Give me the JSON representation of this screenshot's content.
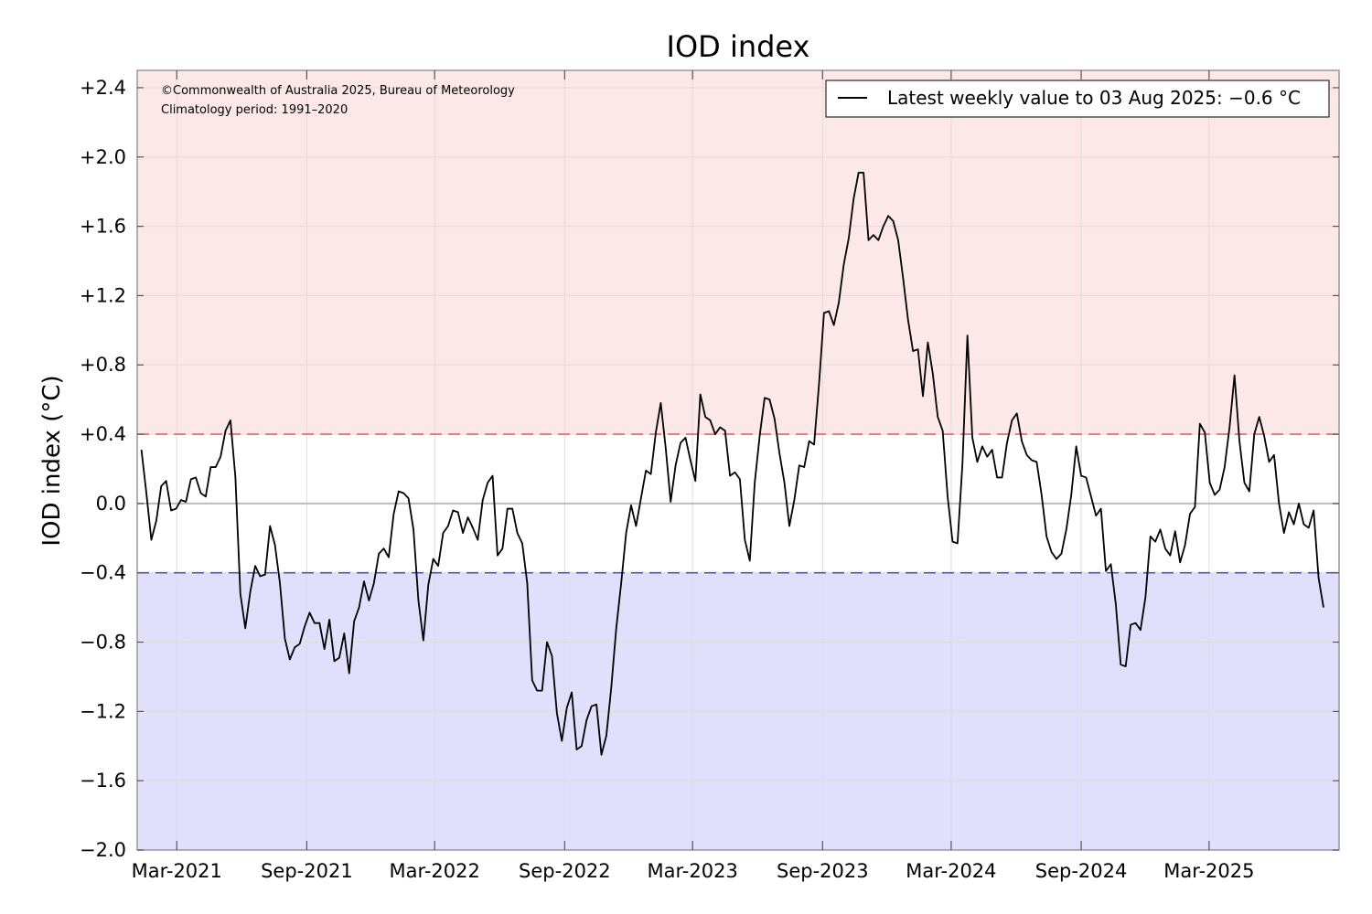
{
  "chart_data": {
    "type": "line",
    "title": "IOD index",
    "xlabel": "",
    "ylabel": "IOD index (°C)",
    "ylim": [
      -2.0,
      2.5
    ],
    "xlim": [
      "2021-01-04",
      "2025-09-01"
    ],
    "y_ticks": [
      -2.0,
      -1.6,
      -1.2,
      -0.8,
      -0.4,
      0.0,
      0.4,
      0.8,
      1.2,
      1.6,
      2.0,
      2.4
    ],
    "y_tick_labels": [
      "−2.0",
      "−1.6",
      "−1.2",
      "−0.8",
      "−0.4",
      "0.0",
      "+0.4",
      "+0.8",
      "+1.2",
      "+1.6",
      "+2.0",
      "+2.4"
    ],
    "x_ticks": [
      "2021-03-01",
      "2021-09-01",
      "2022-03-01",
      "2022-09-01",
      "2023-03-01",
      "2023-09-01",
      "2024-03-01",
      "2024-09-01",
      "2025-03-01"
    ],
    "x_tick_labels": [
      "Mar-2021",
      "Sep-2021",
      "Mar-2022",
      "Sep-2022",
      "Mar-2023",
      "Sep-2023",
      "Mar-2024",
      "Sep-2024",
      "Mar-2025"
    ],
    "grid": true,
    "thresholds": {
      "positive": 0.4,
      "negative": -0.4
    },
    "colors": {
      "positive_zone": "#fde8e8",
      "negative_zone": "#e0e0fc",
      "positive_threshold": "#e06666",
      "negative_threshold": "#555599",
      "series": "#000000",
      "zero_line": "#bbbbbb",
      "grid": "#dddddd",
      "frame": "#999999"
    },
    "credit": [
      "©Commonwealth of Australia 2025, Bureau of Meteorology",
      "Climatology period: 1991–2020"
    ],
    "legend": {
      "label": "Latest weekly value to 03 Aug 2025: −0.6 °C",
      "position": "top-right"
    },
    "series": [
      {
        "name": "Latest weekly value to 03 Aug 2025: −0.6 °C",
        "x_start": "2021-01-10",
        "x_step_days": 7,
        "values": [
          0.31,
          0.06,
          -0.21,
          -0.1,
          0.1,
          0.13,
          -0.04,
          -0.03,
          0.02,
          0.01,
          0.14,
          0.15,
          0.06,
          0.04,
          0.21,
          0.21,
          0.27,
          0.42,
          0.48,
          0.15,
          -0.52,
          -0.72,
          -0.51,
          -0.36,
          -0.42,
          -0.41,
          -0.13,
          -0.24,
          -0.46,
          -0.78,
          -0.9,
          -0.83,
          -0.81,
          -0.71,
          -0.63,
          -0.69,
          -0.69,
          -0.84,
          -0.67,
          -0.91,
          -0.89,
          -0.75,
          -0.98,
          -0.68,
          -0.6,
          -0.45,
          -0.56,
          -0.46,
          -0.29,
          -0.26,
          -0.31,
          -0.06,
          0.07,
          0.06,
          0.03,
          -0.15,
          -0.56,
          -0.79,
          -0.47,
          -0.32,
          -0.36,
          -0.17,
          -0.13,
          -0.04,
          -0.05,
          -0.17,
          -0.08,
          -0.14,
          -0.21,
          0.02,
          0.12,
          0.16,
          -0.3,
          -0.26,
          -0.03,
          -0.03,
          -0.17,
          -0.23,
          -0.46,
          -1.02,
          -1.08,
          -1.08,
          -0.8,
          -0.88,
          -1.21,
          -1.37,
          -1.18,
          -1.09,
          -1.42,
          -1.4,
          -1.25,
          -1.17,
          -1.16,
          -1.45,
          -1.34,
          -1.06,
          -0.72,
          -0.46,
          -0.17,
          -0.01,
          -0.13,
          0.03,
          0.19,
          0.17,
          0.41,
          0.58,
          0.32,
          0.01,
          0.22,
          0.35,
          0.38,
          0.25,
          0.13,
          0.63,
          0.5,
          0.48,
          0.4,
          0.44,
          0.42,
          0.16,
          0.18,
          0.14,
          -0.21,
          -0.33,
          0.12,
          0.39,
          0.61,
          0.6,
          0.49,
          0.29,
          0.12,
          -0.13,
          0.02,
          0.22,
          0.21,
          0.36,
          0.34,
          0.69,
          1.1,
          1.11,
          1.03,
          1.16,
          1.38,
          1.53,
          1.76,
          1.91,
          1.91,
          1.52,
          1.55,
          1.52,
          1.6,
          1.66,
          1.63,
          1.52,
          1.3,
          1.06,
          0.88,
          0.89,
          0.62,
          0.93,
          0.75,
          0.5,
          0.42,
          0.04,
          -0.22,
          -0.23,
          0.23,
          0.97,
          0.38,
          0.24,
          0.33,
          0.27,
          0.31,
          0.15,
          0.15,
          0.35,
          0.48,
          0.52,
          0.36,
          0.28,
          0.25,
          0.24,
          0.05,
          -0.19,
          -0.28,
          -0.32,
          -0.29,
          -0.15,
          0.05,
          0.33,
          0.16,
          0.15,
          0.04,
          -0.07,
          -0.03,
          -0.39,
          -0.35,
          -0.58,
          -0.93,
          -0.94,
          -0.7,
          -0.69,
          -0.73,
          -0.54,
          -0.19,
          -0.22,
          -0.15,
          -0.26,
          -0.3,
          -0.16,
          -0.34,
          -0.24,
          -0.06,
          -0.02,
          0.46,
          0.41,
          0.12,
          0.05,
          0.08,
          0.21,
          0.44,
          0.74,
          0.36,
          0.12,
          0.07,
          0.4,
          0.5,
          0.39,
          0.24,
          0.28,
          0.0,
          -0.17,
          -0.05,
          -0.12,
          0.0,
          -0.12,
          -0.14,
          -0.04,
          -0.43,
          -0.6
        ]
      }
    ]
  }
}
